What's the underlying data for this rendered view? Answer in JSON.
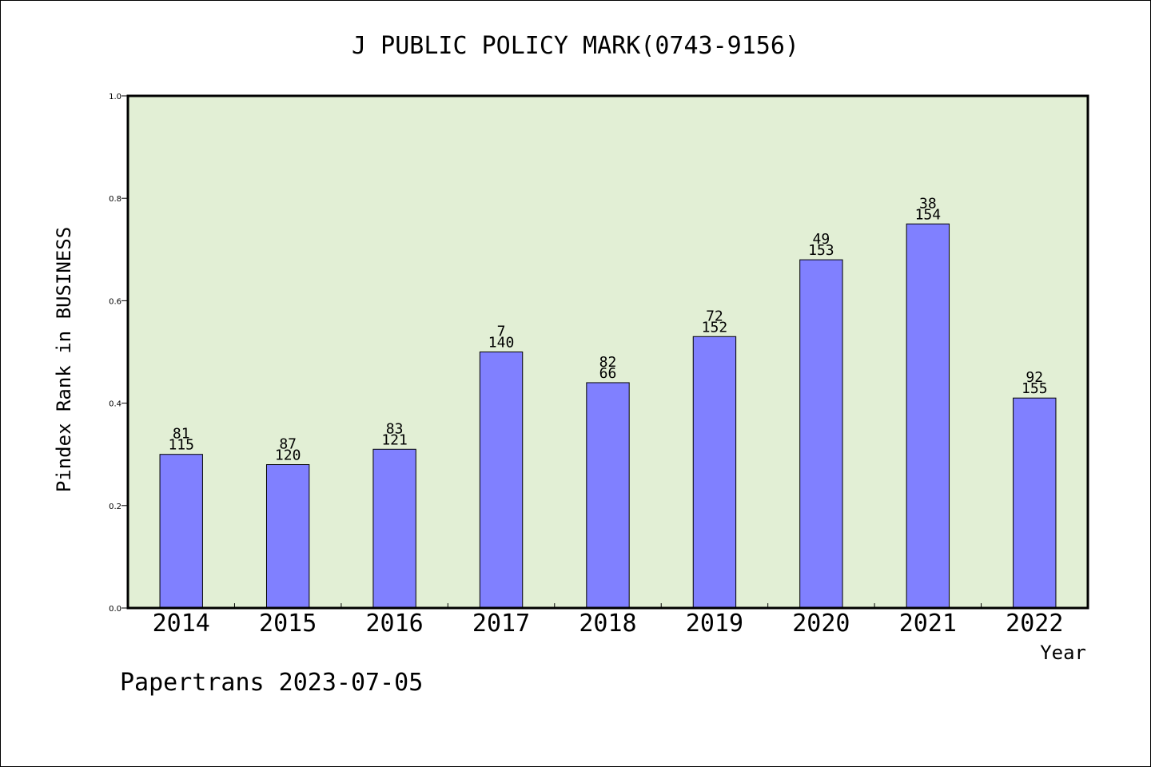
{
  "chart_data": {
    "type": "bar",
    "title": "J PUBLIC POLICY MARK(0743-9156)",
    "xlabel": "Year",
    "ylabel": "Pindex Rank in BUSINESS",
    "ylim": [
      0.0,
      1.0
    ],
    "yticks": [
      "0.0",
      "0.2",
      "0.4",
      "0.6",
      "0.8",
      "1.0"
    ],
    "categories": [
      "2014",
      "2015",
      "2016",
      "2017",
      "2018",
      "2019",
      "2020",
      "2021",
      "2022"
    ],
    "values": [
      0.3,
      0.28,
      0.31,
      0.5,
      0.44,
      0.53,
      0.68,
      0.75,
      0.41
    ],
    "labels_top": [
      "81",
      "87",
      "83",
      "7",
      "82",
      "72",
      "49",
      "38",
      "92"
    ],
    "labels_bottom": [
      "115",
      "120",
      "121",
      "140",
      "66",
      "152",
      "153",
      "154",
      "155"
    ],
    "grid": false,
    "colors": {
      "bar": "#8080ff",
      "plot_background": "#e2efd5",
      "axis": "#000000"
    }
  },
  "footer": {
    "watermark": "Papertrans 2023-07-05"
  }
}
